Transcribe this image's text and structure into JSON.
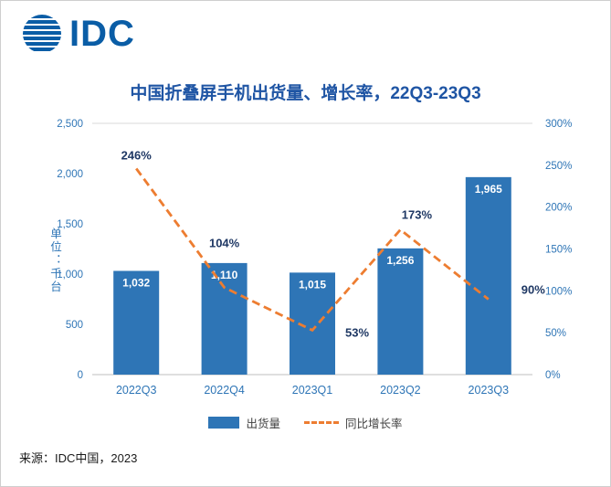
{
  "logo": {
    "text": "IDC",
    "color": "#0A5DA6"
  },
  "footer": "来源：IDC中国，2023",
  "legend": {
    "bar_label": "出货量",
    "line_label": "同比增长率"
  },
  "chart_data": {
    "type": "bar+line",
    "title": "中国折叠屏手机出货量、增长率，22Q3-23Q3",
    "categories": [
      "2022Q3",
      "2022Q4",
      "2023Q1",
      "2023Q2",
      "2023Q3"
    ],
    "series": [
      {
        "name": "出货量",
        "type": "bar",
        "axis": "left",
        "color": "#2E75B6",
        "values": [
          1032,
          1110,
          1015,
          1256,
          1965
        ],
        "labels": [
          "1,032",
          "1,110",
          "1,015",
          "1,256",
          "1,965"
        ]
      },
      {
        "name": "同比增长率",
        "type": "line",
        "axis": "right",
        "color": "#ED7D31",
        "dashed": true,
        "values": [
          246,
          104,
          53,
          173,
          90
        ],
        "labels": [
          "246%",
          "104%",
          "53%",
          "173%",
          "90%"
        ]
      }
    ],
    "left_axis": {
      "title": "单位：千台",
      "min": 0,
      "max": 2500,
      "step": 500,
      "ticks": [
        "0",
        "500",
        "1,000",
        "1,500",
        "2,000",
        "2,500"
      ]
    },
    "right_axis": {
      "min": 0,
      "max": 300,
      "step": 50,
      "ticks": [
        "0%",
        "50%",
        "100%",
        "150%",
        "200%",
        "250%",
        "300%"
      ]
    },
    "legend_position": "bottom",
    "grid": false
  }
}
